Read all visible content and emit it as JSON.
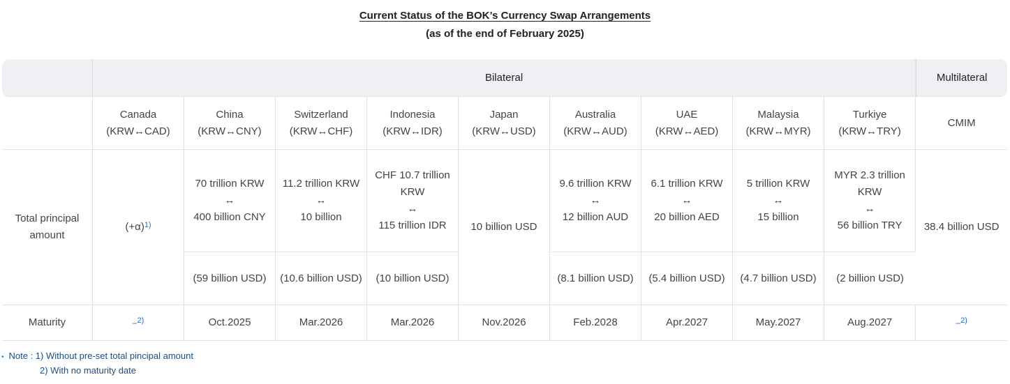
{
  "title": "Current Status of the BOK’s Currency Swap Arrangements",
  "subtitle": "(as of the end of February 2025)",
  "table": {
    "group_bilateral": "Bilateral",
    "group_multilateral": "Multilateral",
    "row_total_label": "Total principal amount",
    "row_maturity_label": "Maturity",
    "footnote_marker_1": "1)",
    "footnote_marker_2": "2)",
    "dash": "–",
    "columns": [
      {
        "country": "Canada",
        "pair": "(KRW↔CAD)",
        "amount_line1": "(+α)",
        "amount_line2": "",
        "amount_line3": "",
        "usd": "",
        "maturity": ""
      },
      {
        "country": "China",
        "pair": "(KRW↔CNY)",
        "amount_line1": "70 trillion KRW",
        "amount_line2": "↔",
        "amount_line3": "400 billion CNY",
        "usd": "(59 billion USD)",
        "maturity": "Oct.2025"
      },
      {
        "country": "Switzerland",
        "pair": "(KRW↔CHF)",
        "amount_line1": "11.2 trillion KRW",
        "amount_line2": "↔",
        "amount_line3": "10 billion",
        "usd": "(10.6 billion USD)",
        "maturity": "Mar.2026"
      },
      {
        "country": "Indonesia",
        "pair": "(KRW↔IDR)",
        "amount_line1": "CHF 10.7 trillion KRW",
        "amount_line2": "↔",
        "amount_line3": "115 trillion IDR",
        "usd": "(10 billion USD)",
        "maturity": "Mar.2026"
      },
      {
        "country": "Japan",
        "pair": "(KRW↔USD)",
        "amount_line1": "10 billion USD",
        "amount_line2": "",
        "amount_line3": "",
        "usd": "",
        "maturity": "Nov.2026"
      },
      {
        "country": "Australia",
        "pair": "(KRW↔AUD)",
        "amount_line1": "9.6 trillion KRW",
        "amount_line2": "↔",
        "amount_line3": "12 billion AUD",
        "usd": "(8.1 billion USD)",
        "maturity": "Feb.2028"
      },
      {
        "country": "UAE",
        "pair": "(KRW↔AED)",
        "amount_line1": "6.1 trillion KRW",
        "amount_line2": "↔",
        "amount_line3": "20 billion AED",
        "usd": "(5.4 billion USD)",
        "maturity": "Apr.2027"
      },
      {
        "country": "Malaysia",
        "pair": "(KRW↔MYR)",
        "amount_line1": "5 trillion KRW",
        "amount_line2": "↔",
        "amount_line3": "15 billion",
        "usd": "(4.7 billion USD)",
        "maturity": "May.2027"
      },
      {
        "country": "Turkiye",
        "pair": "(KRW↔TRY)",
        "amount_line1": "MYR 2.3 trillion KRW",
        "amount_line2": "↔",
        "amount_line3": "56 billion TRY",
        "usd": "(2 billion USD)",
        "maturity": "Aug.2027"
      }
    ],
    "multilateral": {
      "name": "CMIM",
      "amount": "38.4 billion USD"
    }
  },
  "notes": {
    "line1": "Note : 1) Without pre-set total pincipal amount",
    "line2": "2) With no maturity date"
  }
}
